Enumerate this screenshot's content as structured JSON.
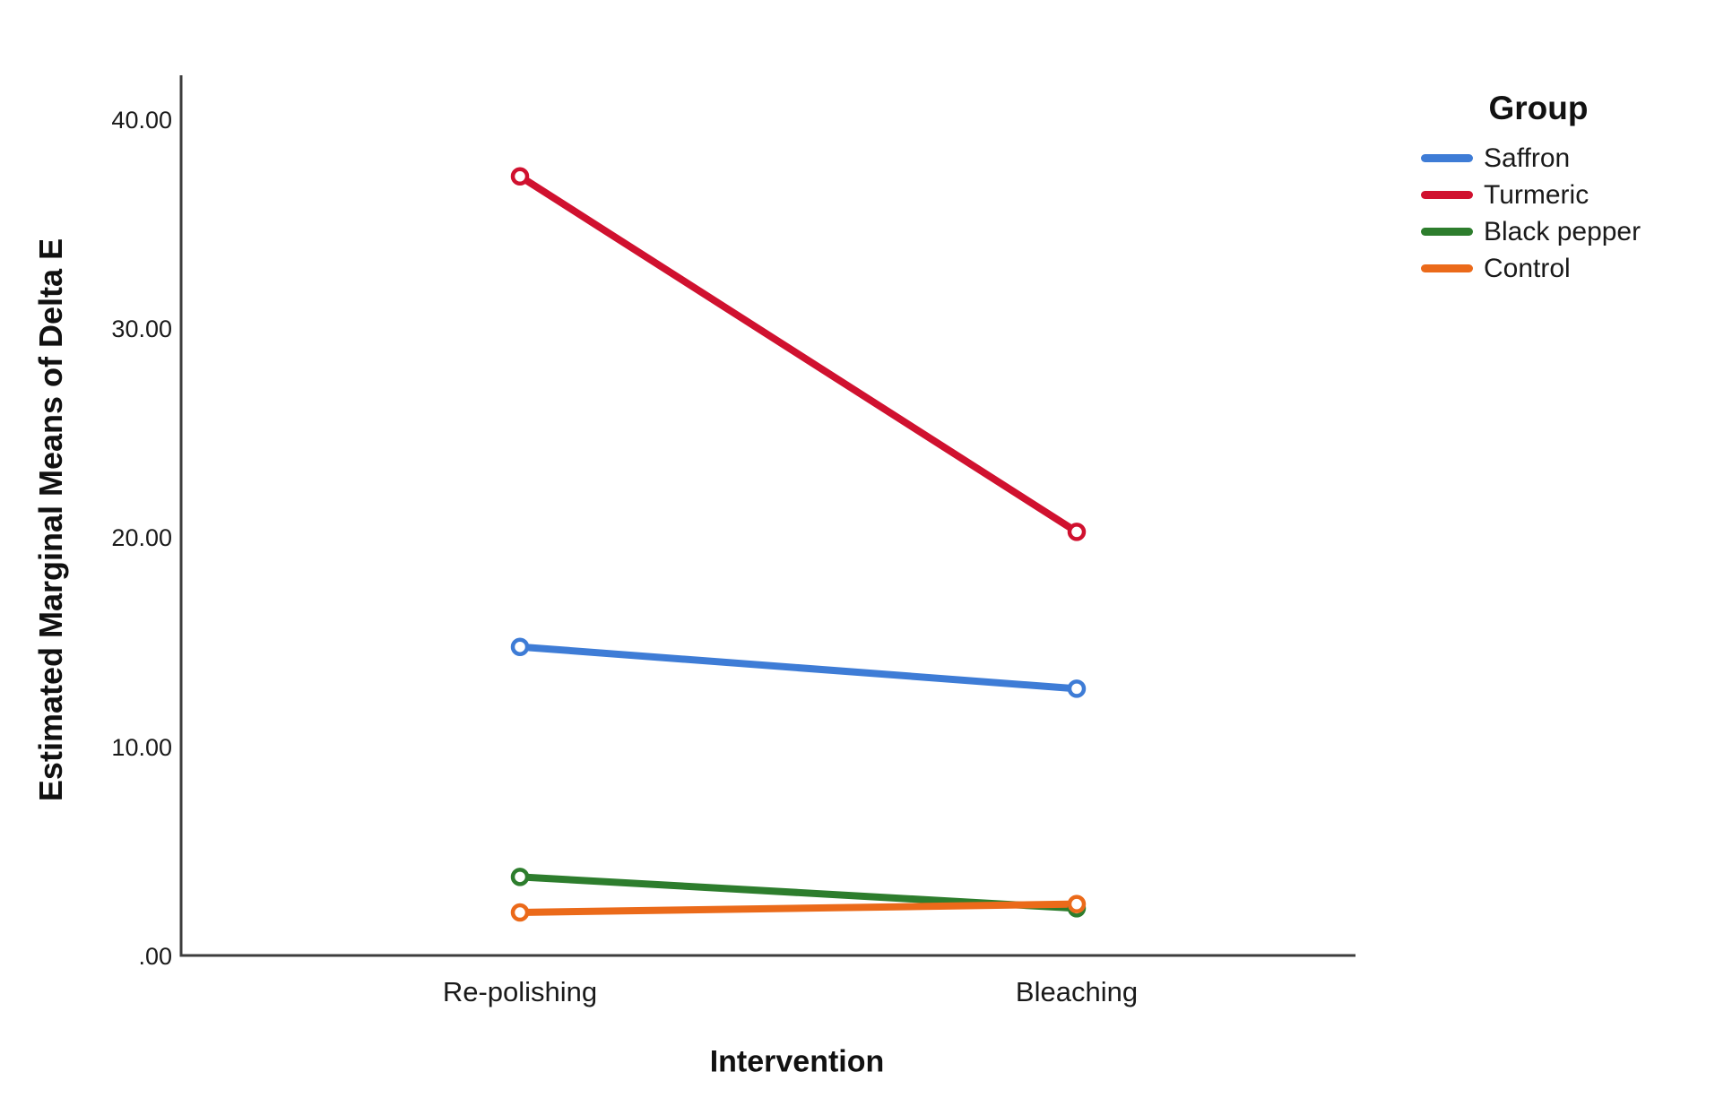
{
  "chart_data": {
    "type": "line",
    "title": "",
    "xlabel": "Intervention",
    "ylabel": "Estimated Marginal Means of Delta E",
    "categories": [
      "Re-polishing",
      "Bleaching"
    ],
    "series": [
      {
        "name": "Saffron",
        "color": "#3E7CD6",
        "values": [
          14.8,
          12.8
        ]
      },
      {
        "name": "Turmeric",
        "color": "#D0112F",
        "values": [
          37.3,
          20.3
        ]
      },
      {
        "name": "Black pepper",
        "color": "#2D7D2D",
        "values": [
          3.8,
          2.3
        ]
      },
      {
        "name": "Control",
        "color": "#EB6A1A",
        "values": [
          2.1,
          2.5
        ]
      }
    ],
    "yticks": {
      "values": [
        0,
        10,
        20,
        30,
        40
      ],
      "labels": [
        ".00",
        "10.00",
        "20.00",
        "30.00",
        "40.00"
      ]
    },
    "ylim": [
      0,
      42
    ],
    "grid": false,
    "marker": "open-circle",
    "legend": {
      "title": "Group",
      "position": "top-right"
    }
  },
  "colors": {
    "axis": "#3C3C3C",
    "text": "#1A1A1A",
    "background": "#FFFFFF"
  }
}
